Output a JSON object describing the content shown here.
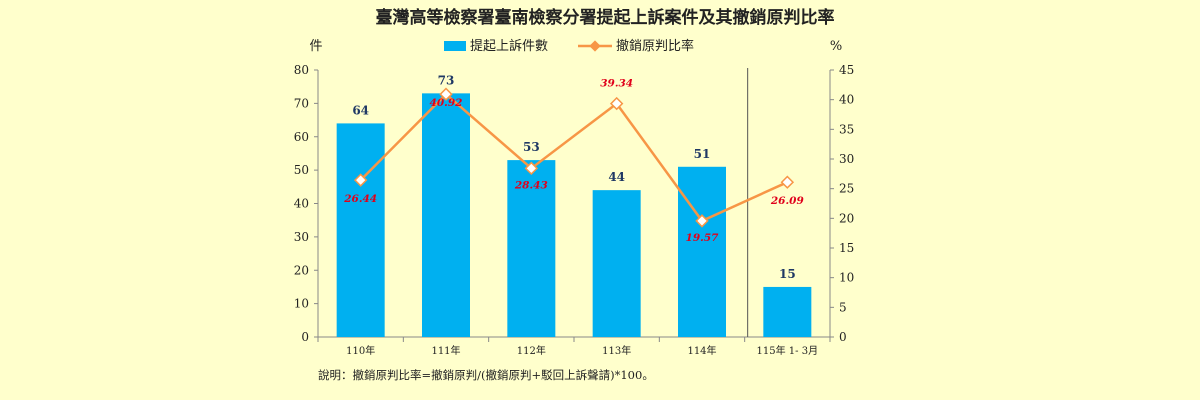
{
  "chart_data": {
    "type": "bar",
    "title": "臺灣高等檢察署臺南檢察分署提起上訴案件及其撤銷原判比率",
    "left_unit": "件",
    "right_unit": "%",
    "categories": [
      "110年",
      "111年",
      "112年",
      "113年",
      "114年",
      "115年 1- 3月"
    ],
    "series": [
      {
        "name": "提起上訴件數",
        "type": "bar",
        "axis": "left",
        "color": "#00B0F0",
        "values": [
          64,
          73,
          53,
          44,
          51,
          15
        ],
        "labels": [
          "64",
          "73",
          "53",
          "44",
          "51",
          "15"
        ]
      },
      {
        "name": "撤銷原判比率",
        "type": "line",
        "axis": "right",
        "color": "#F79646",
        "marker": "diamond",
        "values": [
          26.44,
          40.92,
          28.43,
          39.34,
          19.57,
          26.09
        ],
        "labels": [
          "26.44",
          "40.92",
          "28.43",
          "39.34",
          "19.57",
          "26.09"
        ]
      }
    ],
    "y_left": {
      "min": 0,
      "max": 80,
      "ticks": [
        "0",
        "10",
        "20",
        "30",
        "40",
        "50",
        "60",
        "70",
        "80"
      ]
    },
    "y_right": {
      "min": 0,
      "max": 45,
      "ticks": [
        "0",
        "5",
        "10",
        "15",
        "20",
        "25",
        "30",
        "35",
        "40",
        "45"
      ]
    },
    "legend_position": "top-center",
    "grid": false,
    "note": "說明：撤銷原判比率=撤銷原判/(撤銷原判+駁回上訴聲請)*100。"
  }
}
